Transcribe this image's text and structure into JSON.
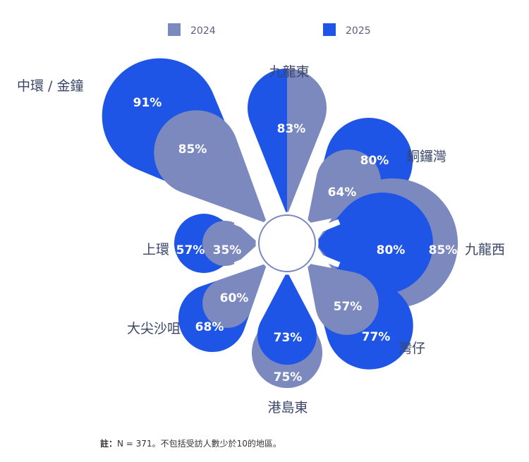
{
  "chart_data": {
    "type": "radial-petal",
    "series": [
      {
        "name": "2024",
        "color": "#7b89bf"
      },
      {
        "name": "2025",
        "color": "#1f55e6"
      }
    ],
    "categories": [
      {
        "name": "九龍東",
        "v2024": 83,
        "v2025": 83,
        "l2024": "83%",
        "l2025": ""
      },
      {
        "name": "銅鑼灣",
        "v2024": 64,
        "v2025": 80,
        "l2024": "64%",
        "l2025": "80%"
      },
      {
        "name": "九龍西",
        "v2024": 85,
        "v2025": 80,
        "l2024": "85%",
        "l2025": "80%"
      },
      {
        "name": "灣仔",
        "v2024": 57,
        "v2025": 77,
        "l2024": "57%",
        "l2025": "77%"
      },
      {
        "name": "港島東",
        "v2024": 75,
        "v2025": 73,
        "l2024": "75%",
        "l2025": "73%"
      },
      {
        "name": "大尖沙咀",
        "v2024": 60,
        "v2025": 68,
        "l2024": "60%",
        "l2025": "68%"
      },
      {
        "name": "上環",
        "v2024": 35,
        "v2025": 57,
        "l2024": "35%",
        "l2025": "57%"
      },
      {
        "name": "中環 / 金鐘",
        "v2024": 85,
        "v2025": 91,
        "l2024": "85%",
        "l2025": "91%"
      }
    ]
  },
  "legend": {
    "label_2024": "2024",
    "label_2025": "2025"
  },
  "note": {
    "prefix": "註：",
    "text": "N = 371。不包括受訪人數少於10的地區。"
  },
  "colors": {
    "c2024": "#7b89bf",
    "c2025": "#1f55e6",
    "bg": "#ffffff"
  }
}
